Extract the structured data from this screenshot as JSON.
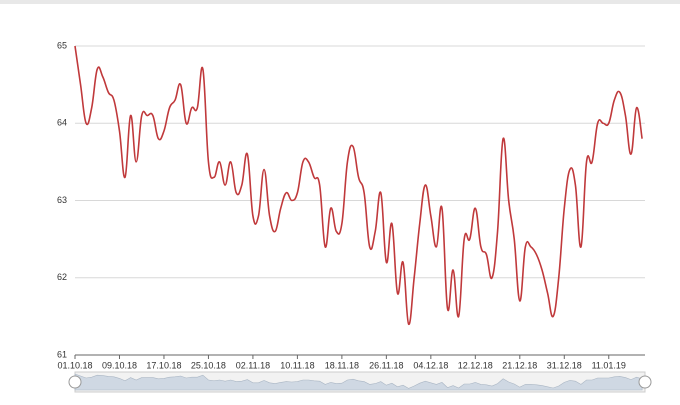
{
  "chart_data": {
    "type": "line",
    "categories": [
      "01.10.18",
      null,
      null,
      null,
      null,
      null,
      null,
      null,
      "09.10.18",
      null,
      null,
      null,
      null,
      null,
      null,
      null,
      "17.10.18",
      null,
      null,
      null,
      null,
      null,
      null,
      null,
      "25.10.18",
      null,
      null,
      null,
      null,
      null,
      null,
      null,
      "02.11.18",
      null,
      null,
      null,
      null,
      null,
      null,
      null,
      "10.11.18",
      null,
      null,
      null,
      null,
      null,
      null,
      null,
      "18.11.18",
      null,
      null,
      null,
      null,
      null,
      null,
      null,
      "26.11.18",
      null,
      null,
      null,
      null,
      null,
      null,
      null,
      "04.12.18",
      null,
      null,
      null,
      null,
      null,
      null,
      null,
      "12.12.18",
      null,
      null,
      null,
      null,
      null,
      null,
      null,
      "21.12.18",
      null,
      null,
      null,
      null,
      null,
      null,
      null,
      "31.12.18",
      null,
      null,
      null,
      null,
      null,
      null,
      null,
      "11.01.19",
      null,
      null,
      null,
      null,
      null,
      null
    ],
    "series": [
      {
        "color": "#c0393b",
        "values": [
          65.0,
          64.5,
          64.0,
          64.2,
          64.7,
          64.6,
          64.4,
          64.3,
          63.9,
          63.3,
          64.1,
          63.5,
          64.1,
          64.1,
          64.1,
          63.8,
          63.9,
          64.2,
          64.3,
          64.5,
          64.0,
          64.2,
          64.2,
          64.7,
          63.5,
          63.3,
          63.5,
          63.2,
          63.5,
          63.1,
          63.2,
          63.6,
          62.8,
          62.8,
          63.4,
          62.8,
          62.6,
          62.9,
          63.1,
          63.0,
          63.1,
          63.5,
          63.5,
          63.3,
          63.2,
          62.4,
          62.9,
          62.6,
          62.7,
          63.5,
          63.7,
          63.3,
          63.1,
          62.4,
          62.6,
          63.1,
          62.2,
          62.7,
          61.8,
          62.2,
          61.4,
          62.0,
          62.7,
          63.2,
          62.8,
          62.4,
          62.9,
          61.6,
          62.1,
          61.5,
          62.5,
          62.5,
          62.9,
          62.4,
          62.3,
          62.0,
          62.6,
          63.8,
          63.0,
          62.5,
          61.7,
          62.4,
          62.4,
          62.3,
          62.1,
          61.8,
          61.5,
          62.0,
          62.9,
          63.4,
          63.2,
          62.4,
          63.5,
          63.5,
          64.0,
          64.0,
          64.0,
          64.3,
          64.4,
          64.1,
          63.6,
          64.2,
          63.8
        ]
      }
    ],
    "ylim": [
      61,
      65
    ],
    "yticks": [
      61,
      62,
      63,
      64,
      65
    ],
    "grid": true
  }
}
